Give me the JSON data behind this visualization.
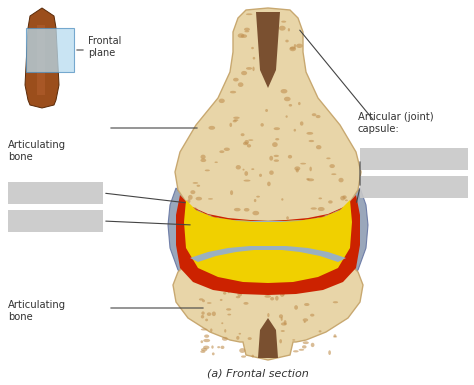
{
  "title": "(a) Frontal section",
  "bg_color": "#ffffff",
  "labels": {
    "frontal_plane": "Frontal\nplane",
    "articulating_bone_top": "Articulating\nbone",
    "articulating_bone_bottom": "Articulating\nbone",
    "articular_capsule": "Articular (joint)\ncapsule:",
    "section_title": "(a) Frontal section"
  },
  "colors": {
    "bone": "#e8d5a8",
    "bone_dark": "#c8a870",
    "bone_cortical": "#dfc090",
    "marrow_cavity": "#7a5030",
    "cartilage_blue": "#9ab0c0",
    "synovial_yellow": "#f0d000",
    "synovial_orange": "#e08010",
    "synovial_red": "#cc2200",
    "capsule_blue_gray": "#8898b0",
    "capsule_light": "#b0bfcf",
    "finger_skin": "#9b4e1c",
    "finger_mid": "#b56030",
    "frontal_plane_box": "#b8dcf0",
    "text_color": "#333333",
    "label_box": "#c8c8c8",
    "arrow_color": "#444444",
    "porous_dot": "#c09050"
  },
  "figsize": [
    4.74,
    3.85
  ],
  "dpi": 100
}
